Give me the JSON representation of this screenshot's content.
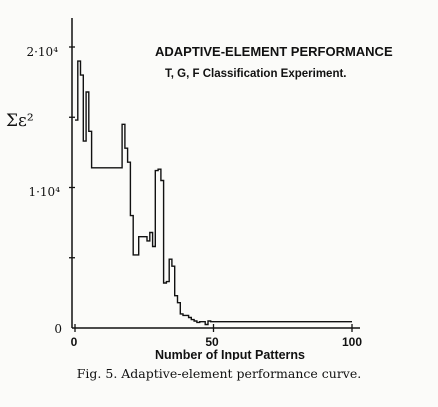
{
  "chart_data": {
    "type": "line",
    "title": "ADAPTIVE-ELEMENT PERFORMANCE",
    "subtitle": "T, G, F Classification Experiment.",
    "xlabel": "Number of Input Patterns",
    "ylabel": "Σε²",
    "xlim": [
      0,
      100
    ],
    "ylim": [
      0,
      22000
    ],
    "xticks": [
      "0",
      "50",
      "100"
    ],
    "yticks": [
      "0",
      "1·10⁴",
      "2·10⁴"
    ],
    "grid": false,
    "step": true,
    "series": [
      {
        "x": [
          0,
          1,
          2,
          3,
          4,
          5,
          6,
          17,
          18,
          19,
          20,
          21,
          22,
          23,
          26,
          27,
          28,
          29,
          30,
          31,
          32,
          33,
          34,
          35,
          36,
          37,
          38,
          39,
          41,
          42,
          43,
          44,
          45,
          47,
          48,
          49,
          100
        ],
        "y": [
          14800,
          19000,
          18000,
          13300,
          16800,
          14000,
          11400,
          14500,
          12800,
          11800,
          8000,
          5200,
          5200,
          6500,
          6200,
          6800,
          5800,
          11200,
          11300,
          10500,
          3200,
          3300,
          4900,
          4400,
          2300,
          1800,
          1000,
          900,
          750,
          600,
          500,
          400,
          450,
          250,
          500,
          450,
          450
        ]
      }
    ]
  },
  "figure": {
    "caption": "Fig. 5.  Adaptive-element performance curve."
  }
}
